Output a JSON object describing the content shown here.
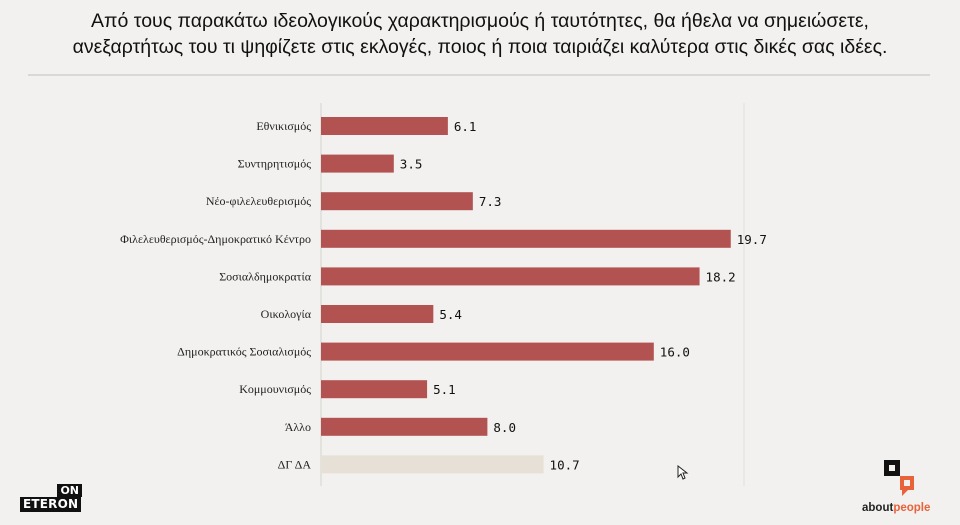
{
  "title": {
    "line1": "Από τους παρακάτω ιδεολογικούς χαρακτηρισμούς ή ταυτότητες, θα ήθελα να σημειώσετε,",
    "line2": "ανεξαρτήτως του τι ψηφίζετε στις εκλογές, ποιος ή ποια ταιριάζει καλύτερα στις δικές σας ιδέες."
  },
  "colors": {
    "bar": "#b25351",
    "bar_muted": "#e6e0d6",
    "background": "#f2f1ef",
    "gridline": "#d9d8d5"
  },
  "chart_data": {
    "type": "bar",
    "orientation": "horizontal",
    "categories": [
      "Εθνικισμός",
      "Συντηρητισμός",
      "Νέο-φιλελευθερισμός",
      "Φιλελευθερισμός-Δημοκρατικό Κέντρο",
      "Σοσιαλδημοκρατία",
      "Οικολογία",
      "Δημοκρατικός Σοσιαλισμός",
      "Κομμουνισμός",
      "Άλλο",
      "ΔΓ ΔΑ"
    ],
    "values": [
      6.1,
      3.5,
      7.3,
      19.7,
      18.2,
      5.4,
      16.0,
      5.1,
      8.0,
      10.7
    ],
    "value_labels": [
      "6.1",
      "3.5",
      "7.3",
      "19.7",
      "18.2",
      "5.4",
      "16.0",
      "5.1",
      "8.0",
      "10.7"
    ],
    "muted_categories": [
      "ΔΓ ΔΑ"
    ],
    "xlim": [
      0,
      20
    ],
    "grid": true
  },
  "logos": {
    "left_top": "ON",
    "left_bottom": "ETERON",
    "right_part1": "about",
    "right_part2": "people"
  }
}
